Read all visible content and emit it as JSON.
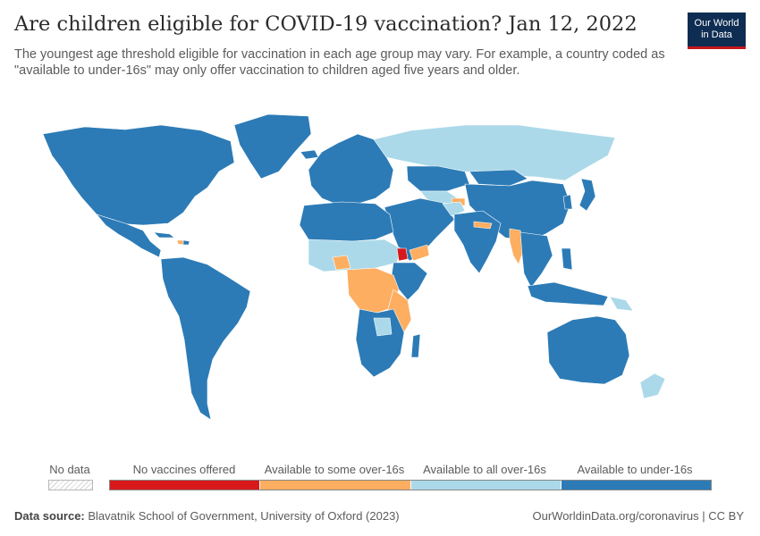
{
  "header": {
    "title": "Are children eligible for COVID-19 vaccination? Jan 12, 2022",
    "subtitle": "The youngest age threshold eligible for vaccination in each age group may vary. For example, a country coded as \"available to under-16s\" may only offer vaccination to children aged five years and older.",
    "logo_line1": "Our World",
    "logo_line2": "in Data"
  },
  "legend": {
    "no_data_label": "No data",
    "categories": [
      {
        "label": "No vaccines offered",
        "color": "#d7191c"
      },
      {
        "label": "Available to some over-16s",
        "color": "#fdae61"
      },
      {
        "label": "Available to all over-16s",
        "color": "#abd9e9"
      },
      {
        "label": "Available to under-16s",
        "color": "#2c7bb6"
      }
    ]
  },
  "footer": {
    "source_label": "Data source:",
    "source_text": "Blavatnik School of Government, University of Oxford (2023)",
    "url_license": "OurWorldinData.org/coronavirus | CC BY"
  }
}
